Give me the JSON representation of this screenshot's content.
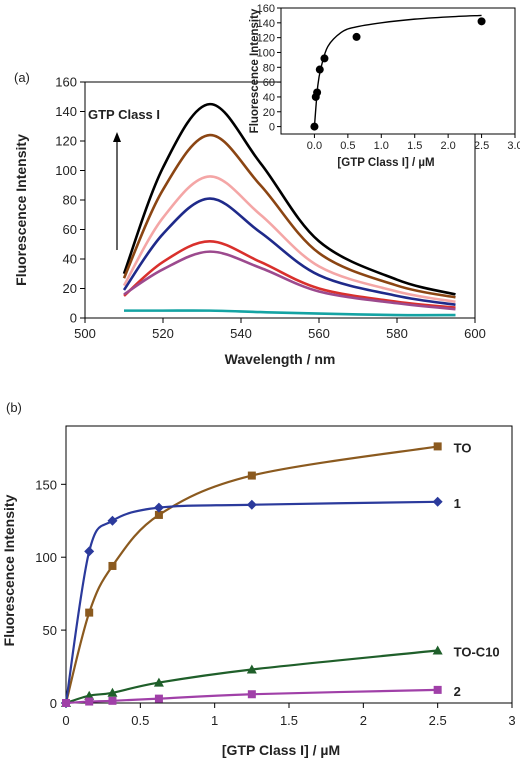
{
  "chart_data": [
    {
      "panel_label": "(a)",
      "type": "line",
      "xlabel": "Wavelength / nm",
      "ylabel": "Fluorescence Intensity",
      "xlim": [
        500,
        600
      ],
      "ylim": [
        0,
        160
      ],
      "xticks": [
        "500",
        "520",
        "540",
        "560",
        "580",
        "600"
      ],
      "yticks": [
        "0",
        "20",
        "40",
        "60",
        "80",
        "100",
        "120",
        "140",
        "160"
      ],
      "annotation": "GTP Class I",
      "x_range": [
        510,
        595
      ],
      "peak_wavelength": 532,
      "series": [
        {
          "color": "#000000",
          "values": [
            [
              510,
              30
            ],
            [
              520,
              102
            ],
            [
              532,
              145
            ],
            [
              545,
              105
            ],
            [
              560,
              52
            ],
            [
              580,
              26
            ],
            [
              595,
              16
            ]
          ]
        },
        {
          "color": "#8b4513",
          "values": [
            [
              510,
              27
            ],
            [
              520,
              87
            ],
            [
              532,
              124
            ],
            [
              545,
              90
            ],
            [
              560,
              44
            ],
            [
              580,
              22
            ],
            [
              595,
              14
            ]
          ]
        },
        {
          "color": "#f4a6a6",
          "values": [
            [
              510,
              22
            ],
            [
              520,
              68
            ],
            [
              532,
              96
            ],
            [
              545,
              70
            ],
            [
              560,
              35
            ],
            [
              580,
              18
            ],
            [
              595,
              11
            ]
          ]
        },
        {
          "color": "#1f2a8a",
          "values": [
            [
              510,
              19
            ],
            [
              520,
              57
            ],
            [
              532,
              81
            ],
            [
              545,
              58
            ],
            [
              560,
              29
            ],
            [
              580,
              15
            ],
            [
              595,
              9
            ]
          ]
        },
        {
          "color": "#d9302c",
          "values": [
            [
              510,
              15
            ],
            [
              520,
              38
            ],
            [
              532,
              52
            ],
            [
              545,
              38
            ],
            [
              560,
              20
            ],
            [
              580,
              11
            ],
            [
              595,
              7
            ]
          ]
        },
        {
          "color": "#9c4a8e",
          "values": [
            [
              510,
              16
            ],
            [
              520,
              33
            ],
            [
              532,
              45
            ],
            [
              545,
              34
            ],
            [
              560,
              18
            ],
            [
              580,
              10
            ],
            [
              595,
              6
            ]
          ]
        },
        {
          "color": "#14a3a3",
          "values": [
            [
              510,
              5
            ],
            [
              520,
              5
            ],
            [
              532,
              5
            ],
            [
              545,
              4
            ],
            [
              560,
              3
            ],
            [
              580,
              2
            ],
            [
              595,
              2
            ]
          ]
        }
      ]
    },
    {
      "panel_label": "inset",
      "type": "scatter",
      "xlabel": "[GTP Class I] / µM",
      "ylabel": "Fluorescence Intensity",
      "xlim": [
        -0.5,
        3.0
      ],
      "ylim": [
        -10,
        160
      ],
      "xticks": [
        "0.0",
        "0.5",
        "1.0",
        "1.5",
        "2.0",
        "2.5",
        "3.0"
      ],
      "yticks": [
        "0",
        "20",
        "40",
        "60",
        "80",
        "100",
        "120",
        "140",
        "160"
      ],
      "points": [
        [
          0.0,
          0
        ],
        [
          0.02,
          40
        ],
        [
          0.04,
          46
        ],
        [
          0.08,
          77
        ],
        [
          0.15,
          92
        ],
        [
          0.63,
          121
        ],
        [
          2.5,
          142
        ]
      ],
      "fit": [
        [
          0.0,
          0
        ],
        [
          0.05,
          55
        ],
        [
          0.1,
          80
        ],
        [
          0.2,
          108
        ],
        [
          0.4,
          127
        ],
        [
          0.6,
          134
        ],
        [
          1.0,
          140
        ],
        [
          1.5,
          145
        ],
        [
          2.0,
          148
        ],
        [
          2.5,
          150
        ]
      ]
    },
    {
      "panel_label": "(b)",
      "type": "line",
      "xlabel": "[GTP Class I] / µM",
      "ylabel": "Fluorescence Intensity",
      "xlim": [
        0,
        3
      ],
      "ylim": [
        0,
        190
      ],
      "xticks": [
        "0",
        "0.5",
        "1",
        "1.5",
        "2",
        "2.5",
        "3"
      ],
      "yticks": [
        "0",
        "50",
        "100",
        "150"
      ],
      "series": [
        {
          "name": "TO",
          "color": "#8b5a1f",
          "marker": "square",
          "x": [
            0,
            0.156,
            0.3125,
            0.625,
            1.25,
            2.5
          ],
          "values": [
            0,
            62,
            94,
            129,
            156,
            176
          ]
        },
        {
          "name": "1",
          "color": "#2b3a9c",
          "marker": "diamond",
          "x": [
            0,
            0.156,
            0.3125,
            0.625,
            1.25,
            2.5
          ],
          "values": [
            0,
            104,
            125,
            134,
            136,
            138
          ]
        },
        {
          "name": "TO-C10",
          "color": "#1f5f2a",
          "marker": "triangle",
          "x": [
            0,
            0.156,
            0.3125,
            0.625,
            1.25,
            2.5
          ],
          "values": [
            0,
            5,
            7,
            14,
            23,
            36
          ]
        },
        {
          "name": "2",
          "color": "#a040a8",
          "marker": "square",
          "x": [
            0,
            0.156,
            0.3125,
            0.625,
            1.25,
            2.5
          ],
          "values": [
            0,
            1,
            1.5,
            3,
            6,
            9
          ]
        }
      ]
    }
  ]
}
